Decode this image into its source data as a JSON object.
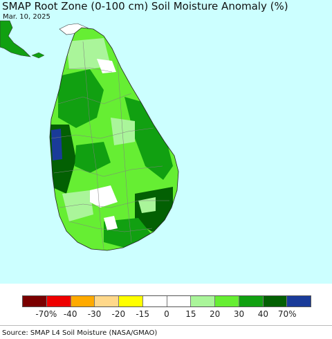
{
  "header": {
    "title": "SMAP Root Zone (0-100 cm) Soil Moisture Anomaly (%)",
    "date": "Mar. 10, 2025"
  },
  "map": {
    "ocean_color": "#ccffff",
    "boundary_color": "#808080"
  },
  "legend": {
    "colors": [
      "#7a0000",
      "#ee0000",
      "#ffaa00",
      "#ffd88a",
      "#ffff00",
      "#ffffff",
      "#ffffff",
      "#aaf59a",
      "#66ee33",
      "#11a011",
      "#036003",
      "#1a3b99"
    ],
    "labels": [
      "-70%",
      "-40",
      "-30",
      "-20",
      "-15",
      "0",
      "15",
      "20",
      "30",
      "40",
      "70%"
    ]
  },
  "footer": {
    "source": "Source: SMAP L4 Soil Moisture (NASA/GMAO)"
  }
}
